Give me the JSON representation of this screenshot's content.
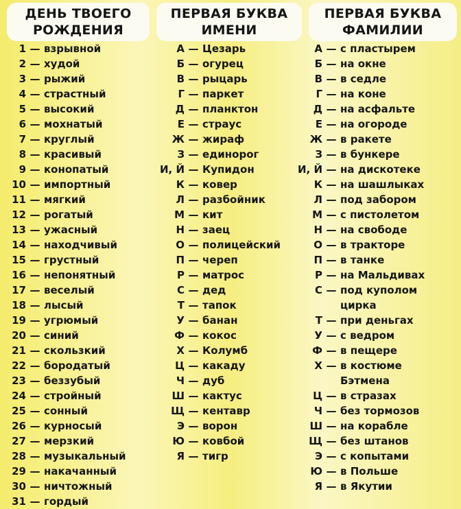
{
  "headers": [
    {
      "line1": "ДЕНЬ ТВОЕГО",
      "line2": "РОЖДЕНИЯ"
    },
    {
      "line1": "ПЕРВАЯ БУКВА",
      "line2": "ИМЕНИ"
    },
    {
      "line1": "ПЕРВАЯ БУКВА",
      "line2": "ФАМИЛИИ"
    }
  ],
  "dash": "—",
  "birthday": [
    {
      "k": "1",
      "t": "взрывной"
    },
    {
      "k": "2",
      "t": "худой"
    },
    {
      "k": "3",
      "t": "рыжий"
    },
    {
      "k": "4",
      "t": "страстный"
    },
    {
      "k": "5",
      "t": "высокий"
    },
    {
      "k": "6",
      "t": "мохнатый"
    },
    {
      "k": "7",
      "t": "круглый"
    },
    {
      "k": "8",
      "t": "красивый"
    },
    {
      "k": "9",
      "t": "конопатый"
    },
    {
      "k": "10",
      "t": "импортный"
    },
    {
      "k": "11",
      "t": "мягкий"
    },
    {
      "k": "12",
      "t": "рогатый"
    },
    {
      "k": "13",
      "t": "ужасный"
    },
    {
      "k": "14",
      "t": "находчивый"
    },
    {
      "k": "15",
      "t": "грустный"
    },
    {
      "k": "16",
      "t": "непонятный"
    },
    {
      "k": "17",
      "t": "веселый"
    },
    {
      "k": "18",
      "t": "лысый"
    },
    {
      "k": "19",
      "t": "угрюмый"
    },
    {
      "k": "20",
      "t": "синий"
    },
    {
      "k": "21",
      "t": "скользкий"
    },
    {
      "k": "22",
      "t": "бородатый"
    },
    {
      "k": "23",
      "t": "беззубый"
    },
    {
      "k": "24",
      "t": "стройный"
    },
    {
      "k": "25",
      "t": "сонный"
    },
    {
      "k": "26",
      "t": "курносый"
    },
    {
      "k": "27",
      "t": "мерзкий"
    },
    {
      "k": "28",
      "t": "музыкальный"
    },
    {
      "k": "29",
      "t": "накачанный"
    },
    {
      "k": "30",
      "t": "ничтожный"
    },
    {
      "k": "31",
      "t": "гордый"
    }
  ],
  "first_name": [
    {
      "k": "А",
      "t": "Цезарь"
    },
    {
      "k": "Б",
      "t": "огурец"
    },
    {
      "k": "В",
      "t": "рыцарь"
    },
    {
      "k": "Г",
      "t": "паркет"
    },
    {
      "k": "Д",
      "t": "планктон"
    },
    {
      "k": "Е",
      "t": "страус"
    },
    {
      "k": "Ж",
      "t": "жираф"
    },
    {
      "k": "З",
      "t": "единорог"
    },
    {
      "k": "И, Й",
      "t": "Купидон"
    },
    {
      "k": "К",
      "t": "ковер"
    },
    {
      "k": "Л",
      "t": "разбойник"
    },
    {
      "k": "М",
      "t": "кит"
    },
    {
      "k": "Н",
      "t": "заец"
    },
    {
      "k": "О",
      "t": "полицейский"
    },
    {
      "k": "П",
      "t": "череп"
    },
    {
      "k": "Р",
      "t": "матрос"
    },
    {
      "k": "С",
      "t": "дед"
    },
    {
      "k": "Т",
      "t": "тапок"
    },
    {
      "k": "У",
      "t": "банан"
    },
    {
      "k": "Ф",
      "t": "кокос"
    },
    {
      "k": "Х",
      "t": "Колумб"
    },
    {
      "k": "Ц",
      "t": "какаду"
    },
    {
      "k": "Ч",
      "t": "дуб"
    },
    {
      "k": "Ш",
      "t": "кактус"
    },
    {
      "k": "Щ",
      "t": "кентавр"
    },
    {
      "k": "Э",
      "t": "ворон"
    },
    {
      "k": "Ю",
      "t": "ковбой"
    },
    {
      "k": "Я",
      "t": "тигр"
    }
  ],
  "last_name": [
    {
      "k": "А",
      "t": "с пластырем"
    },
    {
      "k": "Б",
      "t": "на окне"
    },
    {
      "k": "В",
      "t": "в седле"
    },
    {
      "k": "Г",
      "t": "на коне"
    },
    {
      "k": "Д",
      "t": "на асфальте"
    },
    {
      "k": "Е",
      "t": "на огороде"
    },
    {
      "k": "Ж",
      "t": "в ракете"
    },
    {
      "k": "З",
      "t": "в бункере"
    },
    {
      "k": "И, Й",
      "t": "на дискотеке"
    },
    {
      "k": "К",
      "t": "на шашлыках"
    },
    {
      "k": "Л",
      "t": "под забором"
    },
    {
      "k": "М",
      "t": "с пистолетом"
    },
    {
      "k": "Н",
      "t": "на свободе"
    },
    {
      "k": "О",
      "t": "в тракторе"
    },
    {
      "k": "П",
      "t": "в танке"
    },
    {
      "k": "Р",
      "t": "на Мальдивах"
    },
    {
      "k": "С",
      "t": "под куполом\nцирка"
    },
    {
      "k": "Т",
      "t": "при деньгах"
    },
    {
      "k": "У",
      "t": "с ведром"
    },
    {
      "k": "Ф",
      "t": "в пещере"
    },
    {
      "k": "Х",
      "t": "в костюме\nБэтмена"
    },
    {
      "k": "Ц",
      "t": "в стразах"
    },
    {
      "k": "Ч",
      "t": "без тормозов"
    },
    {
      "k": "Ш",
      "t": "на корабле"
    },
    {
      "k": "Щ",
      "t": "без штанов"
    },
    {
      "k": "Э",
      "t": "с копытами"
    },
    {
      "k": "Ю",
      "t": "в Польше"
    },
    {
      "k": "Я",
      "t": "в Якутии"
    }
  ]
}
